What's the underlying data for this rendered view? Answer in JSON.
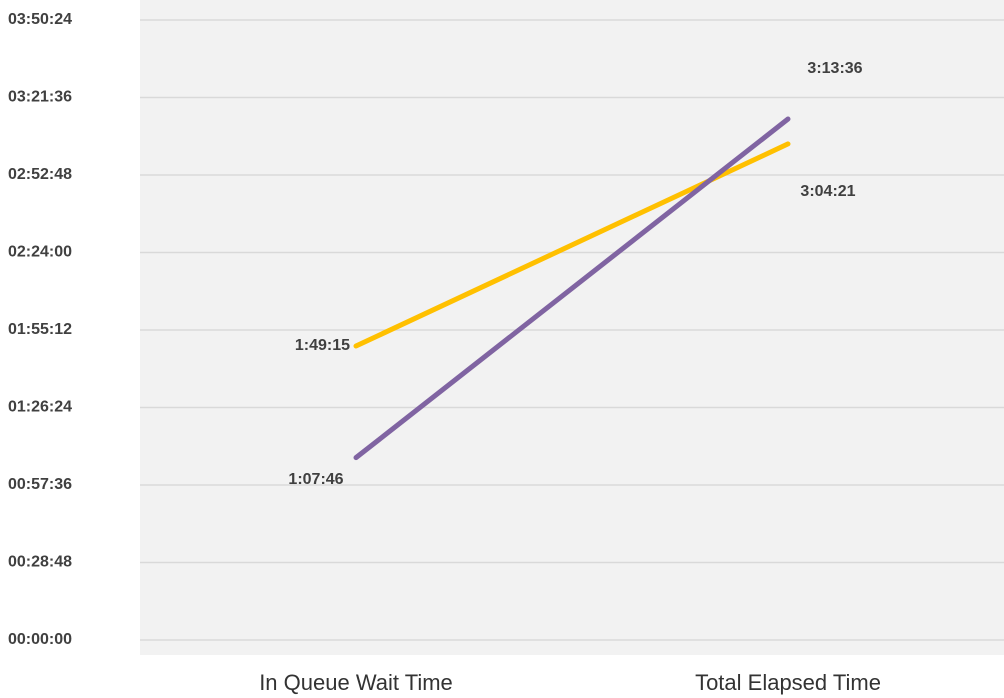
{
  "chart_data": {
    "type": "line",
    "categories": [
      "In Queue Wait Time",
      "Total Elapsed Time"
    ],
    "series": [
      {
        "color": "#ffc000",
        "values": [
          6555,
          11061
        ],
        "value_labels": [
          "1:49:15",
          "3:04:21"
        ]
      },
      {
        "color": "#8064a2",
        "values": [
          4066,
          11616
        ],
        "value_labels": [
          "1:07:46",
          "3:13:36"
        ]
      }
    ],
    "ylim": [
      0,
      13824
    ],
    "yticks": [
      {
        "value": 0,
        "label": "00:00:00"
      },
      {
        "value": 1728,
        "label": "00:28:48"
      },
      {
        "value": 3456,
        "label": "00:57:36"
      },
      {
        "value": 5184,
        "label": "01:26:24"
      },
      {
        "value": 6912,
        "label": "01:55:12"
      },
      {
        "value": 8640,
        "label": "02:24:00"
      },
      {
        "value": 10368,
        "label": "02:52:48"
      },
      {
        "value": 12096,
        "label": "03:21:36"
      },
      {
        "value": 13824,
        "label": "03:50:24"
      }
    ],
    "grid": true
  }
}
